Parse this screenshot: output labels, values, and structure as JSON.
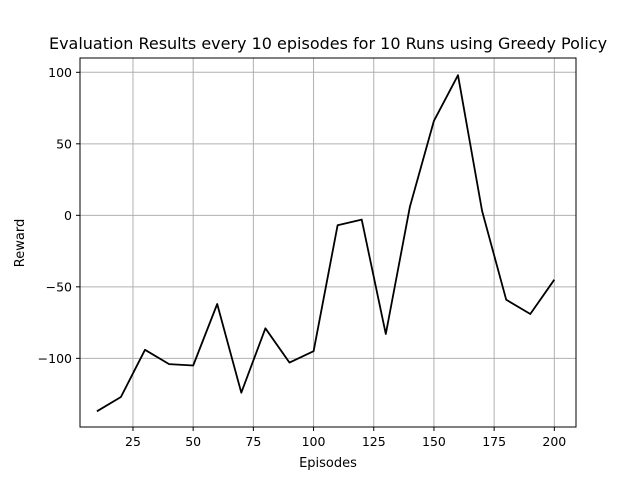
{
  "chart_data": {
    "type": "line",
    "title": "Evaluation Results every 10 episodes for 10 Runs using Greedy Policy",
    "xlabel": "Episodes",
    "ylabel": "Reward",
    "xlim": [
      3,
      209
    ],
    "ylim": [
      -148,
      110
    ],
    "xticks": [
      25,
      50,
      75,
      100,
      125,
      150,
      175,
      200
    ],
    "yticks": [
      100,
      50,
      0,
      -50,
      -100
    ],
    "xtick_labels": [
      "25",
      "50",
      "75",
      "100",
      "125",
      "150",
      "175",
      "200"
    ],
    "ytick_labels": [
      "100",
      "50",
      "0",
      "−50",
      "−100"
    ],
    "grid": true,
    "color": "#000000",
    "series": [
      {
        "x": [
          10,
          20,
          30,
          40,
          50,
          60,
          70,
          80,
          90,
          100,
          110,
          120,
          130,
          140,
          150,
          160,
          170,
          180,
          190,
          200
        ],
        "y": [
          -137,
          -127,
          -94,
          -104,
          -105,
          -62,
          -124,
          -79,
          -103,
          -95,
          -7,
          -3,
          -83,
          6,
          66,
          98,
          3,
          -59,
          -69,
          -45
        ]
      }
    ]
  }
}
